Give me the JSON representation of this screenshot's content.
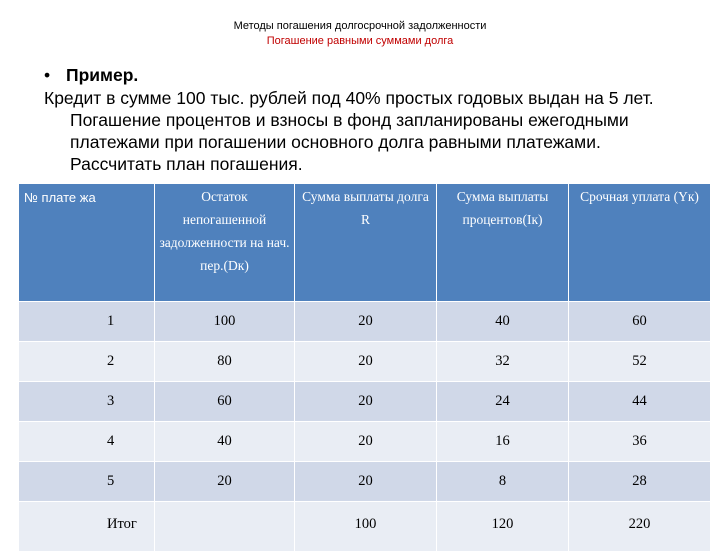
{
  "header": {
    "title": "Методы погашения долгосрочной задолженности",
    "subtitle": "Погашение равными суммами долга"
  },
  "content": {
    "bullet": "•",
    "example_label": "Пример.",
    "line1": "Кредит в сумме 100 тыс. рублей под 40% простых годовых выдан на 5 лет.",
    "line2": "Погашение процентов и взносы в фонд запланированы ежегодными",
    "line3": "платежами при погашении основного долга равными платежами.",
    "line4": "Рассчитать план погашения."
  },
  "table": {
    "headers": [
      "№ плате жа",
      "Остаток непогашенной задолженности на нач. пер.(Dк)",
      "Сумма выплаты долга R",
      "Сумма выплаты процентов(Iк)",
      "Срочная уплата (Yк)"
    ],
    "rows": [
      [
        "1",
        "100",
        "20",
        "40",
        "60"
      ],
      [
        "2",
        "80",
        "20",
        "32",
        "52"
      ],
      [
        "3",
        "60",
        "20",
        "24",
        "44"
      ],
      [
        "4",
        "40",
        "20",
        "16",
        "36"
      ],
      [
        "5",
        "20",
        "20",
        "8",
        "28"
      ],
      [
        "Итог",
        "",
        "100",
        "120",
        "220"
      ]
    ]
  }
}
